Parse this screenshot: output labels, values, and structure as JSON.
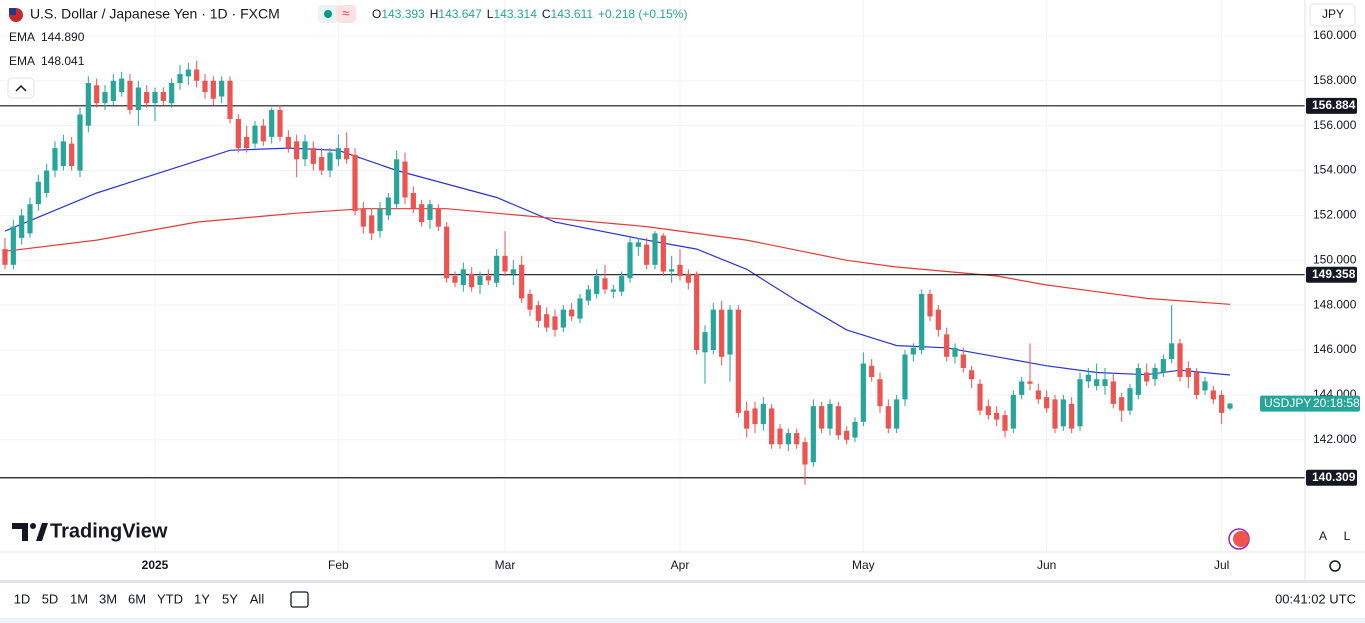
{
  "header": {
    "title": "U.S. Dollar / Japanese Yen · 1D · FXCM",
    "ohlc": [
      {
        "key": "O",
        "value": "143.393"
      },
      {
        "key": "H",
        "value": "143.647"
      },
      {
        "key": "L",
        "value": "143.314"
      },
      {
        "key": "C",
        "value": "143.611"
      }
    ],
    "change": "+0.218 (+0.15%)",
    "currency": "JPY"
  },
  "chart_data": {
    "type": "candlestick",
    "up_color": "#26a69a",
    "down_color": "#ef5350",
    "ylim": [
      137,
      161.6
    ],
    "xlim": [
      -0.6,
      156
    ],
    "yticks": [
      {
        "value": 142,
        "label": "142.000"
      },
      {
        "value": 144,
        "label": "144.000"
      },
      {
        "value": 146,
        "label": "146.000"
      },
      {
        "value": 148,
        "label": "148.000"
      },
      {
        "value": 150,
        "label": "150.000"
      },
      {
        "value": 152,
        "label": "152.000"
      },
      {
        "value": 154,
        "label": "154.000"
      },
      {
        "value": 156,
        "label": "156.000"
      },
      {
        "value": 158,
        "label": "158.000"
      },
      {
        "value": 160,
        "label": "160.000"
      }
    ],
    "xticks": [
      {
        "value": 18,
        "label": "2025"
      },
      {
        "value": 40,
        "label": "Feb"
      },
      {
        "value": 60,
        "label": "Mar"
      },
      {
        "value": 81,
        "label": "Apr"
      },
      {
        "value": 103,
        "label": "May"
      },
      {
        "value": 125,
        "label": "Jun"
      },
      {
        "value": 146,
        "label": "Jul"
      }
    ],
    "grid": true,
    "ohlc": [
      [
        150.5,
        151.0,
        149.6,
        149.8
      ],
      [
        149.8,
        151.8,
        149.6,
        151.5
      ],
      [
        151.0,
        152.3,
        150.7,
        152.0
      ],
      [
        151.2,
        152.8,
        151.0,
        152.5
      ],
      [
        152.5,
        153.8,
        152.2,
        153.5
      ],
      [
        153.0,
        154.3,
        152.8,
        154.0
      ],
      [
        154.0,
        155.3,
        153.7,
        155.0
      ],
      [
        154.2,
        155.6,
        154.0,
        155.3
      ],
      [
        155.2,
        155.5,
        154.0,
        154.2
      ],
      [
        154.0,
        156.8,
        153.7,
        156.5
      ],
      [
        156.0,
        158.2,
        155.7,
        157.9
      ],
      [
        157.8,
        158.1,
        156.8,
        157.0
      ],
      [
        157.0,
        157.8,
        156.7,
        157.5
      ],
      [
        157.1,
        158.3,
        156.9,
        158.0
      ],
      [
        157.5,
        158.4,
        157.3,
        158.1
      ],
      [
        158.0,
        158.3,
        156.5,
        156.7
      ],
      [
        156.7,
        158.0,
        156.0,
        157.7
      ],
      [
        157.5,
        157.8,
        156.8,
        157.0
      ],
      [
        157.0,
        157.7,
        156.2,
        157.5
      ],
      [
        157.5,
        157.7,
        156.9,
        157.1
      ],
      [
        157.0,
        158.1,
        156.8,
        157.9
      ],
      [
        157.9,
        158.7,
        157.6,
        158.3
      ],
      [
        158.2,
        158.8,
        157.8,
        158.5
      ],
      [
        158.5,
        158.9,
        157.7,
        158.0
      ],
      [
        158.0,
        158.3,
        157.2,
        157.5
      ],
      [
        158.0,
        158.2,
        156.9,
        157.2
      ],
      [
        157.3,
        158.2,
        157.0,
        158.0
      ],
      [
        158.0,
        158.2,
        156.1,
        156.3
      ],
      [
        156.3,
        156.5,
        154.8,
        155.0
      ],
      [
        155.5,
        156.0,
        154.8,
        155.0
      ],
      [
        155.2,
        156.2,
        155.0,
        156.0
      ],
      [
        156.0,
        156.3,
        155.1,
        155.3
      ],
      [
        155.5,
        156.8,
        155.2,
        156.7
      ],
      [
        156.7,
        156.9,
        155.3,
        155.5
      ],
      [
        155.5,
        155.8,
        154.8,
        155.0
      ],
      [
        155.3,
        155.6,
        153.7,
        154.5
      ],
      [
        154.5,
        155.6,
        154.2,
        155.3
      ],
      [
        155.0,
        155.3,
        154.0,
        154.3
      ],
      [
        154.6,
        155.0,
        153.8,
        154.0
      ],
      [
        154.0,
        155.0,
        153.7,
        154.8
      ],
      [
        154.5,
        155.6,
        154.2,
        155.0
      ],
      [
        155.0,
        155.7,
        154.3,
        154.5
      ],
      [
        154.7,
        155.0,
        152.0,
        152.2
      ],
      [
        152.3,
        152.6,
        151.2,
        151.5
      ],
      [
        152.0,
        152.3,
        150.9,
        151.2
      ],
      [
        151.3,
        152.6,
        151.0,
        152.3
      ],
      [
        152.0,
        153.0,
        151.8,
        152.8
      ],
      [
        152.5,
        154.9,
        152.3,
        154.5
      ],
      [
        154.4,
        154.8,
        152.5,
        152.8
      ],
      [
        153.0,
        153.3,
        152.1,
        152.3
      ],
      [
        152.5,
        152.7,
        151.5,
        151.7
      ],
      [
        151.8,
        152.7,
        151.4,
        152.5
      ],
      [
        152.3,
        152.5,
        151.3,
        151.5
      ],
      [
        151.5,
        151.7,
        149.0,
        149.2
      ],
      [
        149.3,
        149.5,
        148.8,
        149.0
      ],
      [
        148.9,
        149.9,
        148.6,
        149.6
      ],
      [
        149.4,
        149.7,
        148.6,
        148.8
      ],
      [
        148.9,
        149.5,
        148.5,
        149.3
      ],
      [
        149.3,
        149.6,
        148.9,
        149.1
      ],
      [
        149.0,
        150.5,
        148.8,
        150.2
      ],
      [
        150.2,
        151.3,
        149.3,
        149.5
      ],
      [
        149.4,
        150.0,
        148.9,
        149.6
      ],
      [
        149.8,
        150.2,
        148.1,
        148.3
      ],
      [
        148.5,
        148.7,
        147.5,
        147.8
      ],
      [
        148.0,
        148.2,
        147.0,
        147.3
      ],
      [
        147.6,
        147.9,
        146.8,
        147.0
      ],
      [
        147.5,
        147.8,
        146.6,
        146.9
      ],
      [
        147.0,
        148.0,
        146.8,
        147.8
      ],
      [
        147.8,
        148.1,
        147.3,
        147.5
      ],
      [
        147.4,
        148.5,
        147.2,
        148.3
      ],
      [
        148.2,
        148.9,
        148.0,
        148.7
      ],
      [
        148.5,
        149.6,
        148.3,
        149.3
      ],
      [
        149.2,
        149.8,
        148.5,
        148.7
      ],
      [
        148.6,
        148.9,
        148.3,
        148.7
      ],
      [
        148.6,
        149.5,
        148.4,
        149.3
      ],
      [
        149.2,
        151.0,
        149.0,
        150.8
      ],
      [
        150.6,
        151.0,
        150.2,
        150.8
      ],
      [
        150.7,
        151.0,
        149.6,
        149.8
      ],
      [
        149.8,
        151.3,
        149.6,
        151.2
      ],
      [
        151.1,
        151.2,
        149.3,
        149.5
      ],
      [
        149.5,
        150.2,
        149.0,
        149.6
      ],
      [
        149.8,
        150.5,
        149.1,
        149.3
      ],
      [
        149.4,
        149.6,
        148.7,
        149.0
      ],
      [
        149.4,
        149.5,
        145.8,
        146.0
      ],
      [
        145.9,
        147.1,
        144.5,
        146.8
      ],
      [
        146.0,
        148.1,
        145.8,
        147.8
      ],
      [
        147.8,
        148.2,
        145.3,
        145.7
      ],
      [
        145.8,
        148.0,
        144.6,
        147.8
      ],
      [
        147.8,
        148.0,
        143.0,
        143.2
      ],
      [
        143.3,
        143.7,
        142.1,
        142.5
      ],
      [
        143.4,
        143.7,
        142.3,
        142.7
      ],
      [
        142.7,
        143.9,
        142.4,
        143.6
      ],
      [
        143.4,
        143.6,
        141.6,
        141.8
      ],
      [
        142.5,
        142.7,
        141.6,
        141.8
      ],
      [
        141.8,
        142.5,
        141.5,
        142.3
      ],
      [
        142.3,
        142.5,
        141.6,
        141.8
      ],
      [
        141.9,
        142.1,
        140.0,
        140.9
      ],
      [
        141.0,
        143.8,
        140.8,
        143.5
      ],
      [
        143.5,
        143.7,
        142.3,
        142.5
      ],
      [
        142.5,
        143.8,
        142.2,
        143.6
      ],
      [
        143.5,
        143.7,
        142.0,
        142.2
      ],
      [
        142.4,
        142.6,
        141.8,
        142.0
      ],
      [
        142.1,
        143.0,
        141.9,
        142.8
      ],
      [
        142.8,
        145.9,
        142.6,
        145.4
      ],
      [
        145.3,
        145.6,
        144.6,
        144.8
      ],
      [
        144.7,
        145.0,
        143.2,
        143.5
      ],
      [
        143.5,
        143.8,
        142.3,
        142.5
      ],
      [
        142.5,
        144.0,
        142.3,
        143.8
      ],
      [
        143.8,
        146.0,
        143.5,
        145.8
      ],
      [
        145.8,
        146.3,
        145.5,
        146.1
      ],
      [
        146.0,
        148.7,
        145.8,
        148.5
      ],
      [
        148.5,
        148.7,
        147.3,
        147.5
      ],
      [
        147.8,
        148.0,
        146.6,
        146.9
      ],
      [
        146.7,
        147.0,
        145.5,
        145.7
      ],
      [
        145.7,
        146.3,
        145.4,
        146.1
      ],
      [
        145.8,
        146.1,
        145.0,
        145.2
      ],
      [
        145.1,
        145.3,
        144.3,
        144.7
      ],
      [
        144.5,
        144.7,
        143.1,
        143.3
      ],
      [
        143.5,
        143.8,
        142.9,
        143.1
      ],
      [
        143.2,
        143.5,
        142.6,
        142.9
      ],
      [
        143.1,
        143.3,
        142.1,
        142.4
      ],
      [
        142.5,
        144.2,
        142.3,
        144.0
      ],
      [
        144.0,
        144.8,
        143.8,
        144.6
      ],
      [
        144.6,
        146.3,
        144.2,
        144.5
      ],
      [
        144.2,
        144.5,
        143.6,
        143.8
      ],
      [
        143.9,
        144.2,
        143.2,
        143.4
      ],
      [
        143.8,
        144.0,
        142.3,
        142.5
      ],
      [
        142.6,
        144.0,
        142.4,
        143.8
      ],
      [
        143.6,
        143.9,
        142.3,
        142.5
      ],
      [
        142.6,
        145.0,
        142.4,
        144.7
      ],
      [
        144.6,
        145.2,
        144.3,
        144.9
      ],
      [
        144.4,
        145.4,
        144.2,
        144.7
      ],
      [
        144.4,
        145.2,
        144.0,
        144.7
      ],
      [
        144.6,
        145.0,
        143.4,
        143.6
      ],
      [
        143.9,
        144.1,
        142.8,
        143.3
      ],
      [
        143.3,
        144.5,
        143.1,
        144.3
      ],
      [
        144.0,
        145.4,
        143.8,
        145.2
      ],
      [
        145.0,
        145.4,
        144.4,
        144.6
      ],
      [
        144.7,
        145.4,
        144.4,
        145.2
      ],
      [
        145.0,
        145.8,
        144.8,
        145.6
      ],
      [
        145.6,
        148.0,
        145.4,
        146.3
      ],
      [
        146.3,
        146.5,
        144.6,
        144.8
      ],
      [
        145.2,
        145.5,
        144.3,
        144.8
      ],
      [
        145.0,
        145.2,
        143.8,
        144.0
      ],
      [
        144.2,
        144.8,
        144.0,
        144.6
      ],
      [
        144.2,
        144.4,
        143.6,
        143.8
      ],
      [
        144.0,
        144.2,
        142.7,
        143.2
      ],
      [
        143.393,
        143.647,
        143.314,
        143.611
      ]
    ],
    "series": [
      {
        "name": "EMA",
        "color": "#2934d8",
        "value_label": "144.890",
        "x": [
          0,
          11,
          27,
          34,
          40,
          47,
          59,
          66,
          77,
          83,
          89,
          95,
          101,
          107,
          113,
          119,
          125,
          131,
          137,
          141,
          147
        ],
        "values": [
          151.3,
          153.0,
          154.9,
          155.0,
          154.9,
          154.0,
          152.8,
          151.7,
          150.9,
          150.5,
          149.6,
          148.2,
          146.9,
          146.2,
          146.1,
          145.7,
          145.3,
          145.0,
          144.9,
          145.1,
          144.89
        ]
      },
      {
        "name": "EMA",
        "color": "#e53935",
        "value_label": "148.041",
        "x": [
          0,
          11,
          23,
          35,
          43,
          53,
          65,
          77,
          89,
          101,
          107,
          113,
          119,
          125,
          131,
          137,
          147
        ],
        "values": [
          150.4,
          150.9,
          151.7,
          152.1,
          152.3,
          152.3,
          151.9,
          151.5,
          150.9,
          150.0,
          149.7,
          149.5,
          149.3,
          148.9,
          148.6,
          148.3,
          148.041
        ]
      }
    ],
    "levels": [
      {
        "value": 156.884,
        "label": "156.884"
      },
      {
        "value": 149.358,
        "label": "149.358"
      },
      {
        "value": 140.309,
        "label": "140.309"
      }
    ],
    "price_tag": {
      "symbol": "USDJPY",
      "countdown": "20:18:58",
      "value": 143.611
    }
  },
  "logo": "TradingView",
  "toolbar": {
    "periods": [
      "1D",
      "5D",
      "1M",
      "3M",
      "6M",
      "YTD",
      "1Y",
      "5Y",
      "All"
    ],
    "clock": "00:41:02 UTC",
    "scale_buttons": [
      "A",
      "L"
    ]
  }
}
